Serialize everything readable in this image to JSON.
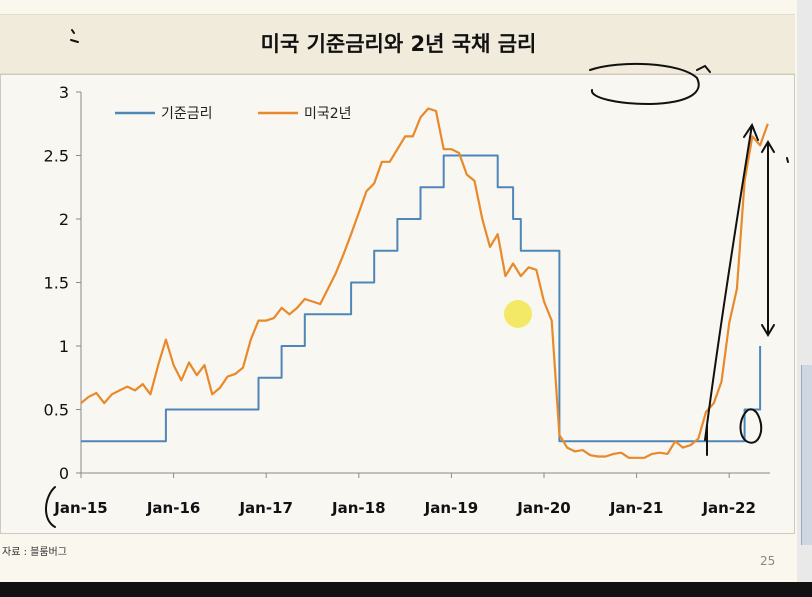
{
  "slide": {
    "title": "미국 기준금리와 2년 국채 금리",
    "source": "자료 : 블룸버그",
    "page_number": "25"
  },
  "chart_data": {
    "type": "line",
    "title": "미국 기준금리와 2년 국채 금리",
    "xlabel": "",
    "ylabel": "",
    "x_ticks": [
      "Jan-15",
      "Jan-16",
      "Jan-17",
      "Jan-18",
      "Jan-19",
      "Jan-20",
      "Jan-21",
      "Jan-22"
    ],
    "y_ticks": [
      "0",
      "0.5",
      "1",
      "1.5",
      "2",
      "2.5",
      "3"
    ],
    "ylim": [
      0,
      3
    ],
    "xlim": [
      "2015-01",
      "2022-06"
    ],
    "grid": false,
    "legend_position": "top-left",
    "series": [
      {
        "name": "기준금리",
        "color": "#4e86b8",
        "step": true,
        "points": [
          [
            "2015-01",
            0.25
          ],
          [
            "2015-12",
            0.25
          ],
          [
            "2015-12",
            0.5
          ],
          [
            "2016-12",
            0.5
          ],
          [
            "2016-12",
            0.75
          ],
          [
            "2017-03",
            0.75
          ],
          [
            "2017-03",
            1.0
          ],
          [
            "2017-06",
            1.0
          ],
          [
            "2017-06",
            1.25
          ],
          [
            "2017-12",
            1.25
          ],
          [
            "2017-12",
            1.5
          ],
          [
            "2018-03",
            1.5
          ],
          [
            "2018-03",
            1.75
          ],
          [
            "2018-06",
            1.75
          ],
          [
            "2018-06",
            2.0
          ],
          [
            "2018-09",
            2.0
          ],
          [
            "2018-09",
            2.25
          ],
          [
            "2018-12",
            2.25
          ],
          [
            "2018-12",
            2.5
          ],
          [
            "2019-07",
            2.5
          ],
          [
            "2019-07",
            2.25
          ],
          [
            "2019-09",
            2.25
          ],
          [
            "2019-09",
            2.0
          ],
          [
            "2019-10",
            2.0
          ],
          [
            "2019-10",
            1.75
          ],
          [
            "2020-03",
            1.75
          ],
          [
            "2020-03",
            1.25
          ],
          [
            "2020-03",
            1.25
          ],
          [
            "2020-03",
            0.25
          ],
          [
            "2022-03",
            0.25
          ],
          [
            "2022-03",
            0.5
          ],
          [
            "2022-05",
            0.5
          ],
          [
            "2022-05",
            1.0
          ]
        ]
      },
      {
        "name": "미국2년",
        "color": "#e8892b",
        "step": false,
        "points": [
          [
            "2015-01",
            0.55
          ],
          [
            "2015-02",
            0.6
          ],
          [
            "2015-03",
            0.63
          ],
          [
            "2015-04",
            0.55
          ],
          [
            "2015-05",
            0.62
          ],
          [
            "2015-06",
            0.65
          ],
          [
            "2015-07",
            0.68
          ],
          [
            "2015-08",
            0.65
          ],
          [
            "2015-09",
            0.7
          ],
          [
            "2015-10",
            0.62
          ],
          [
            "2015-11",
            0.85
          ],
          [
            "2015-12",
            1.05
          ],
          [
            "2016-01",
            0.85
          ],
          [
            "2016-02",
            0.73
          ],
          [
            "2016-03",
            0.87
          ],
          [
            "2016-04",
            0.77
          ],
          [
            "2016-05",
            0.85
          ],
          [
            "2016-06",
            0.62
          ],
          [
            "2016-07",
            0.67
          ],
          [
            "2016-08",
            0.76
          ],
          [
            "2016-09",
            0.78
          ],
          [
            "2016-10",
            0.83
          ],
          [
            "2016-11",
            1.05
          ],
          [
            "2016-12",
            1.2
          ],
          [
            "2017-01",
            1.2
          ],
          [
            "2017-02",
            1.22
          ],
          [
            "2017-03",
            1.3
          ],
          [
            "2017-04",
            1.25
          ],
          [
            "2017-05",
            1.3
          ],
          [
            "2017-06",
            1.37
          ],
          [
            "2017-07",
            1.35
          ],
          [
            "2017-08",
            1.33
          ],
          [
            "2017-09",
            1.45
          ],
          [
            "2017-10",
            1.57
          ],
          [
            "2017-11",
            1.72
          ],
          [
            "2017-12",
            1.88
          ],
          [
            "2018-01",
            2.05
          ],
          [
            "2018-02",
            2.22
          ],
          [
            "2018-03",
            2.28
          ],
          [
            "2018-04",
            2.45
          ],
          [
            "2018-05",
            2.45
          ],
          [
            "2018-06",
            2.55
          ],
          [
            "2018-07",
            2.65
          ],
          [
            "2018-08",
            2.65
          ],
          [
            "2018-09",
            2.8
          ],
          [
            "2018-10",
            2.87
          ],
          [
            "2018-11",
            2.85
          ],
          [
            "2018-12",
            2.55
          ],
          [
            "2019-01",
            2.55
          ],
          [
            "2019-02",
            2.52
          ],
          [
            "2019-03",
            2.35
          ],
          [
            "2019-04",
            2.3
          ],
          [
            "2019-05",
            2.0
          ],
          [
            "2019-06",
            1.78
          ],
          [
            "2019-07",
            1.88
          ],
          [
            "2019-08",
            1.55
          ],
          [
            "2019-09",
            1.65
          ],
          [
            "2019-10",
            1.55
          ],
          [
            "2019-11",
            1.62
          ],
          [
            "2019-12",
            1.6
          ],
          [
            "2020-01",
            1.35
          ],
          [
            "2020-02",
            1.2
          ],
          [
            "2020-03",
            0.3
          ],
          [
            "2020-04",
            0.2
          ],
          [
            "2020-05",
            0.17
          ],
          [
            "2020-06",
            0.18
          ],
          [
            "2020-07",
            0.14
          ],
          [
            "2020-08",
            0.13
          ],
          [
            "2020-09",
            0.13
          ],
          [
            "2020-10",
            0.15
          ],
          [
            "2020-11",
            0.16
          ],
          [
            "2020-12",
            0.12
          ],
          [
            "2021-01",
            0.12
          ],
          [
            "2021-02",
            0.12
          ],
          [
            "2021-03",
            0.15
          ],
          [
            "2021-04",
            0.16
          ],
          [
            "2021-05",
            0.15
          ],
          [
            "2021-06",
            0.25
          ],
          [
            "2021-07",
            0.2
          ],
          [
            "2021-08",
            0.22
          ],
          [
            "2021-09",
            0.27
          ],
          [
            "2021-10",
            0.48
          ],
          [
            "2021-11",
            0.55
          ],
          [
            "2021-12",
            0.72
          ],
          [
            "2022-01",
            1.18
          ],
          [
            "2022-02",
            1.45
          ],
          [
            "2022-03",
            2.3
          ],
          [
            "2022-04",
            2.65
          ],
          [
            "2022-05",
            2.58
          ],
          [
            "2022-06",
            2.75
          ]
        ]
      }
    ]
  },
  "colors": {
    "fed_rate": "#4e86b8",
    "treasury_2y": "#e8892b",
    "marker_highlight": "#f2e64d",
    "annotation_ink": "#111111"
  }
}
